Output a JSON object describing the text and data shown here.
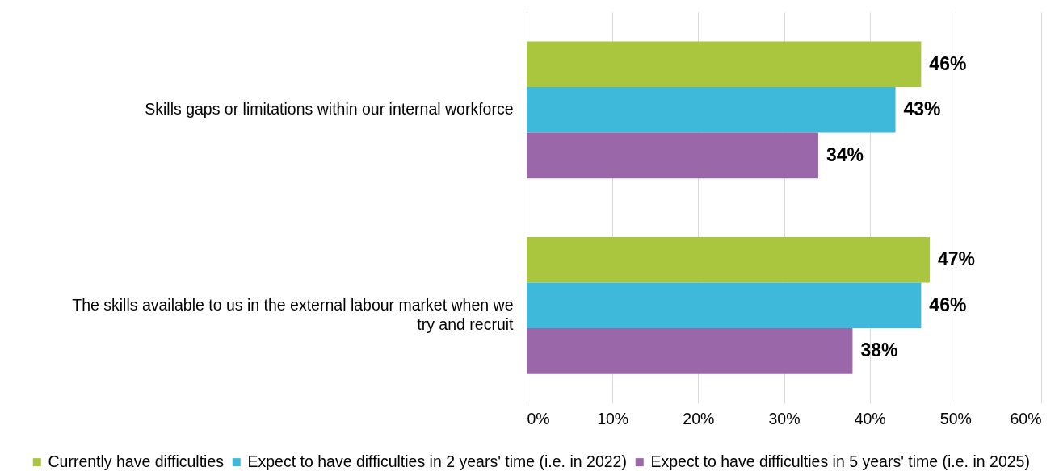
{
  "chart_data": {
    "type": "bar",
    "orientation": "horizontal",
    "categories": [
      "Skills gaps or limitations within our internal workforce",
      "The skills available to us in the external labour market when we try and recruit"
    ],
    "series": [
      {
        "name": "Currently have difficulties",
        "color": "#a9c63e",
        "values": [
          46,
          47
        ],
        "value_labels": [
          "46%",
          "47%"
        ]
      },
      {
        "name": "Expect to have difficulties in 2 years' time (i.e. in 2022)",
        "color": "#3fb9da",
        "values": [
          43,
          46
        ],
        "value_labels": [
          "43%",
          "46%"
        ]
      },
      {
        "name": "Expect to have difficulties in 5 years' time (i.e. in 2025)",
        "color": "#9a67a8",
        "values": [
          34,
          38
        ],
        "value_labels": [
          "34%",
          "38%"
        ]
      }
    ],
    "xlim": [
      0,
      60
    ],
    "xticks": [
      {
        "value": 0,
        "label": "0%"
      },
      {
        "value": 10,
        "label": "10%"
      },
      {
        "value": 20,
        "label": "20%"
      },
      {
        "value": 30,
        "label": "30%"
      },
      {
        "value": 40,
        "label": "40%"
      },
      {
        "value": 50,
        "label": "50%"
      },
      {
        "value": 60,
        "label": "60%"
      }
    ],
    "grid": "x",
    "legend": "bottom"
  }
}
